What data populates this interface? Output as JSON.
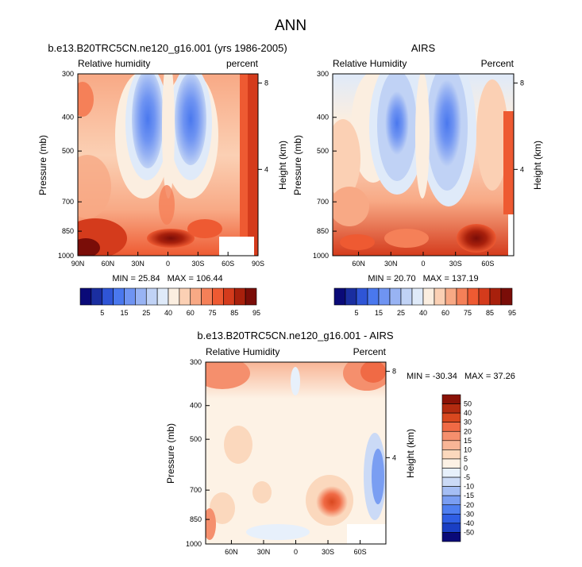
{
  "figure": {
    "main_title": "ANN"
  },
  "palette": {
    "rh_colors": [
      "#0a0a78",
      "#1a2ea0",
      "#2f55d6",
      "#4a78ee",
      "#6f94f2",
      "#98b3f3",
      "#c0d2f5",
      "#dfeaf9",
      "#fbeee0",
      "#fbd0b4",
      "#f8a985",
      "#f58058",
      "#ee5a32",
      "#d43b1c",
      "#a8200c",
      "#7a0d08"
    ],
    "rh_labels": [
      "5",
      "15",
      "25",
      "40",
      "60",
      "75",
      "85",
      "95"
    ],
    "diff_colors": [
      "#0a0a78",
      "#1a3fc4",
      "#2f5ee4",
      "#4f7ff0",
      "#7a9ef2",
      "#a5bef4",
      "#cbdaf6",
      "#e7f0fb",
      "#fdf2e5",
      "#fbd8bd",
      "#f8b596",
      "#f58f6d",
      "#f06a45",
      "#d9481f",
      "#b32b10",
      "#8a1207"
    ],
    "diff_labels": [
      "50",
      "40",
      "30",
      "20",
      "15",
      "10",
      "5",
      "0",
      "-5",
      "-10",
      "-15",
      "-20",
      "-30",
      "-40",
      "-50"
    ]
  },
  "axes": {
    "pressure_label": "Pressure (mb)",
    "height_label": "Height (km)",
    "pressure_ticks": [
      "300",
      "400",
      "500",
      "700",
      "850",
      "1000"
    ],
    "height_ticks": [
      "8",
      "4"
    ],
    "lat_ticks_full": [
      "90N",
      "60N",
      "30N",
      "0",
      "30S",
      "60S",
      "90S"
    ],
    "lat_ticks_short": [
      "60N",
      "30N",
      "0",
      "30S",
      "60S"
    ]
  },
  "chart_data": [
    {
      "type": "heatmap",
      "title": "b.e13.B20TRC5CN.ne120_g16.001 (yrs 1986-2005)",
      "left_string": "Relative humidity",
      "right_string": "percent",
      "xlabel": "",
      "ylabel": "Pressure (mb)",
      "ylabel_right": "Height (km)",
      "x_ticks": [
        "90N",
        "60N",
        "30N",
        "0",
        "30S",
        "60S",
        "90S"
      ],
      "y_ticks": [
        "300",
        "400",
        "500",
        "700",
        "850",
        "1000"
      ],
      "min": 25.84,
      "max": 106.44,
      "stats": {
        "min_label": "MIN = ",
        "min_value": "25.84",
        "max_label": "MAX = ",
        "max_value": "106.44"
      },
      "colorbar_labels": [
        "5",
        "15",
        "25",
        "40",
        "60",
        "75",
        "85",
        "95"
      ]
    },
    {
      "type": "heatmap",
      "title": "AIRS",
      "left_string": "Relative Humidity",
      "right_string": "Percent",
      "xlabel": "",
      "ylabel": "Pressure (mb)",
      "ylabel_right": "Height (km)",
      "x_ticks": [
        "60N",
        "30N",
        "0",
        "30S",
        "60S"
      ],
      "y_ticks": [
        "300",
        "400",
        "500",
        "700",
        "850",
        "1000"
      ],
      "min": 20.7,
      "max": 137.19,
      "stats": {
        "min_label": "MIN = ",
        "min_value": "20.70",
        "max_label": "MAX = ",
        "max_value": "137.19"
      },
      "colorbar_labels": [
        "5",
        "15",
        "25",
        "40",
        "60",
        "75",
        "85",
        "95"
      ]
    },
    {
      "type": "heatmap",
      "title": "b.e13.B20TRC5CN.ne120_g16.001 - AIRS",
      "left_string": "Relative Humidity",
      "right_string": "Percent",
      "xlabel": "",
      "ylabel": "Pressure (mb)",
      "ylabel_right": "Height (km)",
      "x_ticks": [
        "60N",
        "30N",
        "0",
        "30S",
        "60S"
      ],
      "y_ticks": [
        "300",
        "400",
        "500",
        "700",
        "850",
        "1000"
      ],
      "min": -30.34,
      "max": 37.26,
      "stats": {
        "min_label": "MIN = ",
        "min_value": "-30.34",
        "max_label": "MAX = ",
        "max_value": "37.26"
      },
      "colorbar_labels": [
        "50",
        "40",
        "30",
        "20",
        "15",
        "10",
        "5",
        "0",
        "-5",
        "-10",
        "-15",
        "-20",
        "-30",
        "-40",
        "-50"
      ]
    }
  ]
}
